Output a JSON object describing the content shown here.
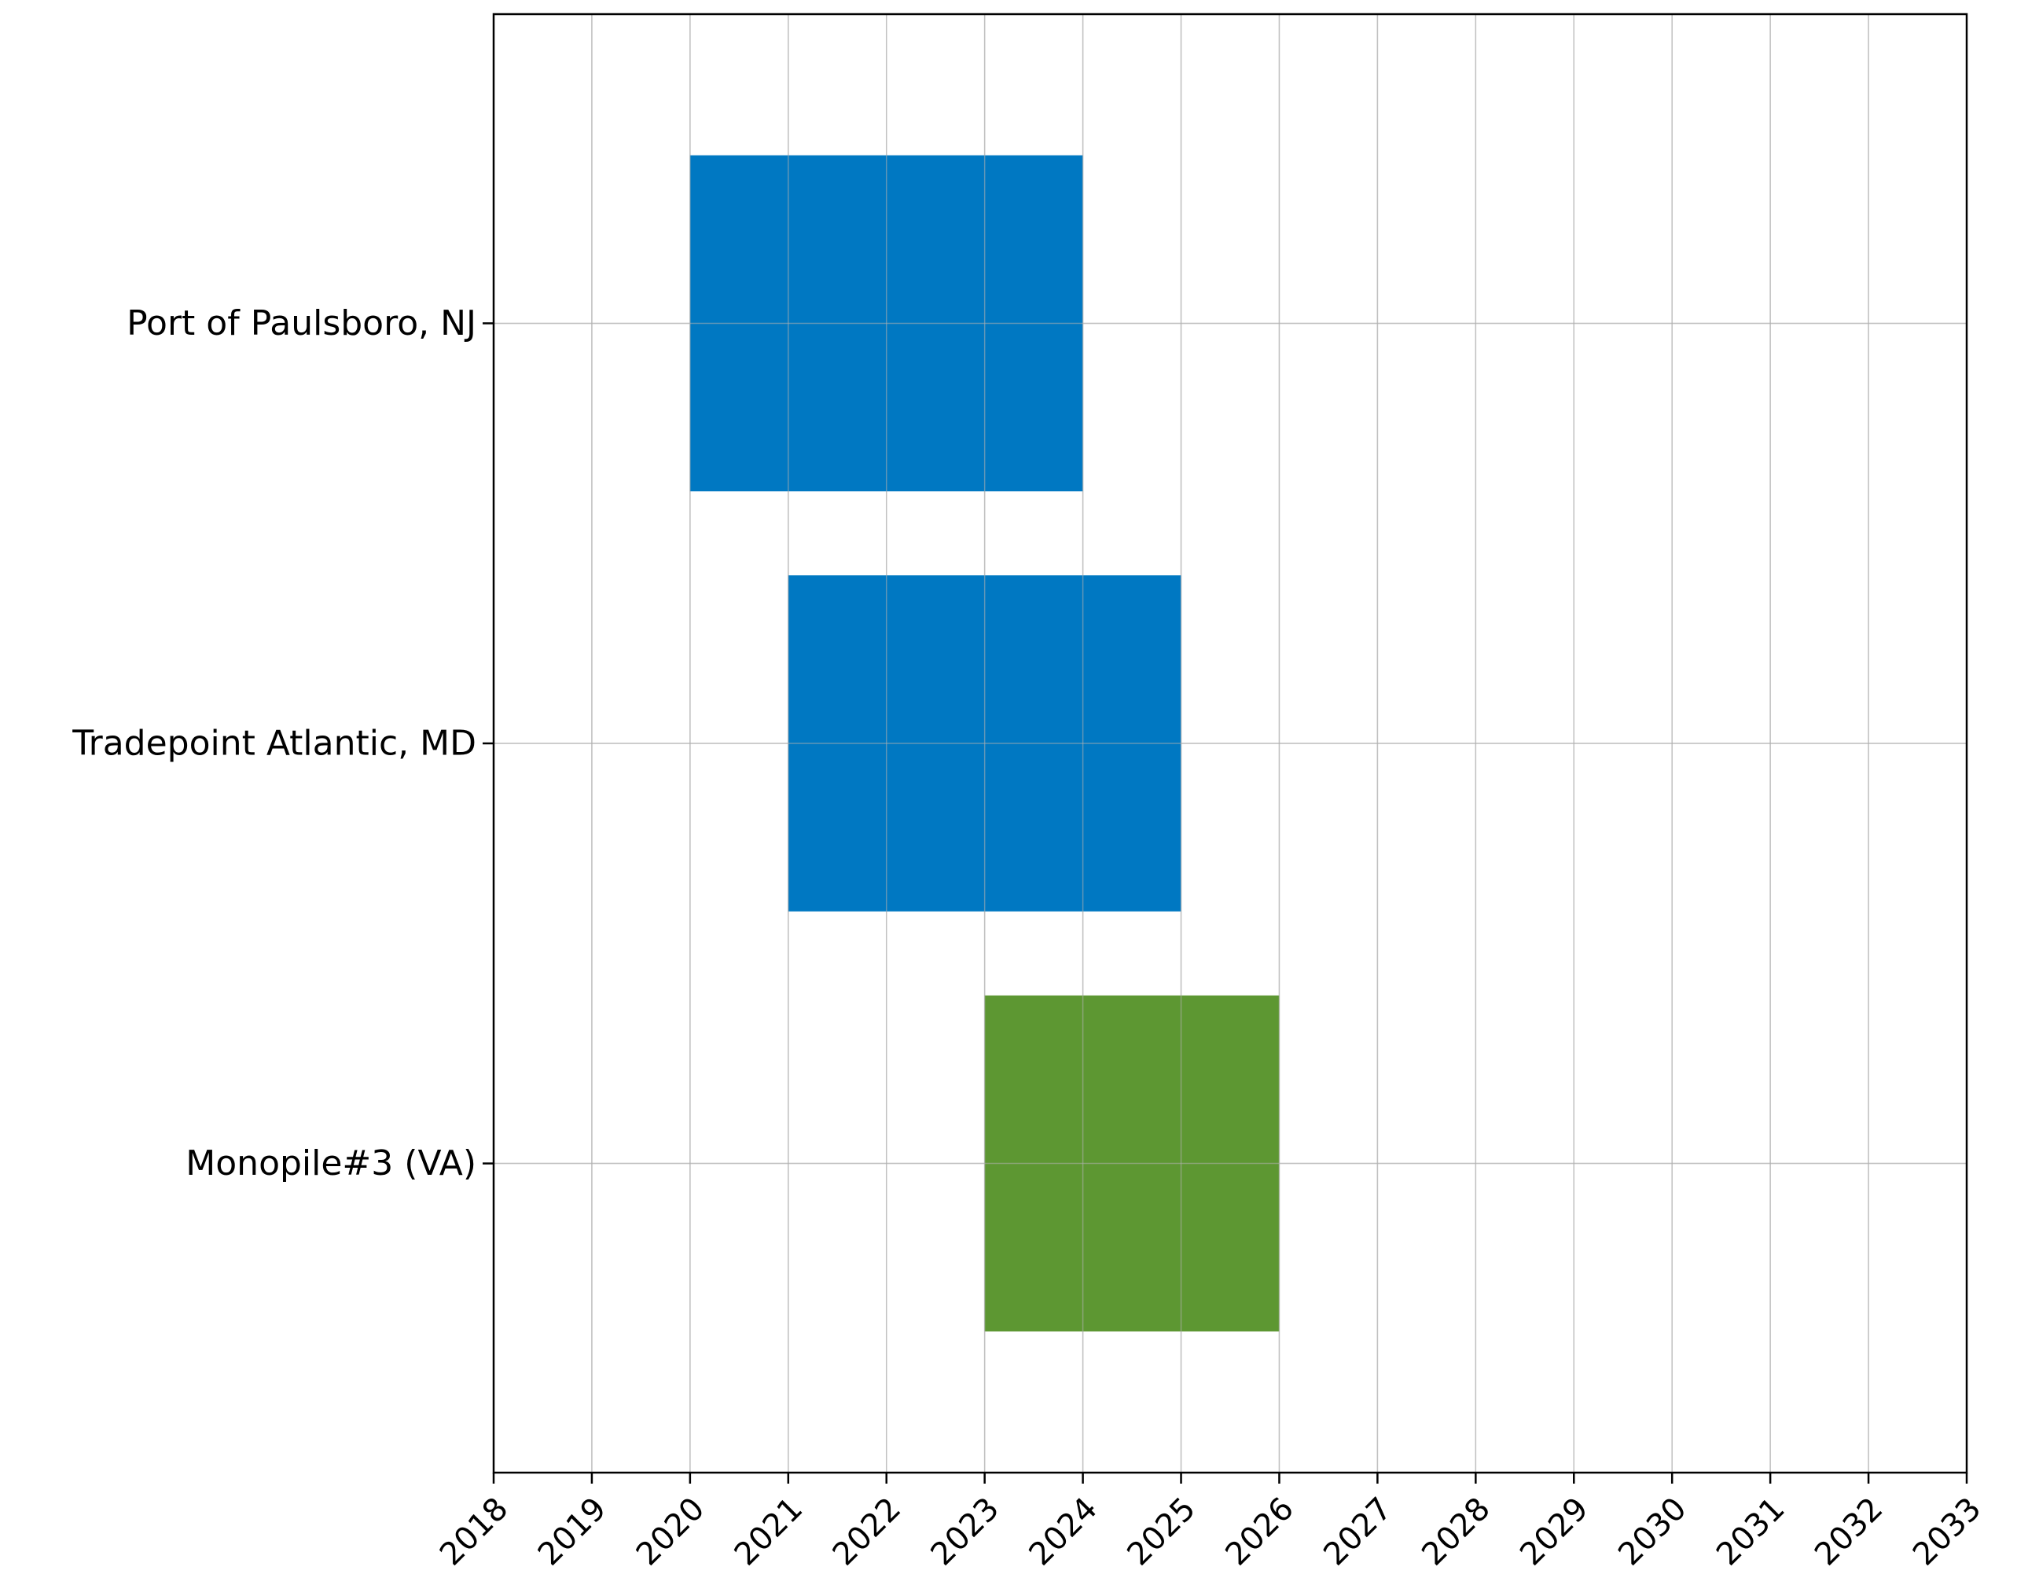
{
  "chart_data": {
    "type": "bar",
    "orientation": "horizontal-range",
    "title": "",
    "xlabel": "",
    "ylabel": "",
    "xlim": [
      2018,
      2033
    ],
    "xticks": [
      "2018",
      "2019",
      "2020",
      "2021",
      "2022",
      "2023",
      "2024",
      "2025",
      "2026",
      "2027",
      "2028",
      "2029",
      "2030",
      "2031",
      "2032",
      "2033"
    ],
    "categories": [
      "Port of Paulsboro, NJ",
      "Tradepoint Atlantic, MD",
      "Monopile#3 (VA)"
    ],
    "bars": [
      {
        "category": "Port of Paulsboro, NJ",
        "start": 2020,
        "end": 2024,
        "color": "#0078c2"
      },
      {
        "category": "Tradepoint Atlantic, MD",
        "start": 2021,
        "end": 2025,
        "color": "#0078c2"
      },
      {
        "category": "Monopile#3 (VA)",
        "start": 2023,
        "end": 2026,
        "color": "#5d9732"
      }
    ],
    "grid": true,
    "legend": "none"
  }
}
